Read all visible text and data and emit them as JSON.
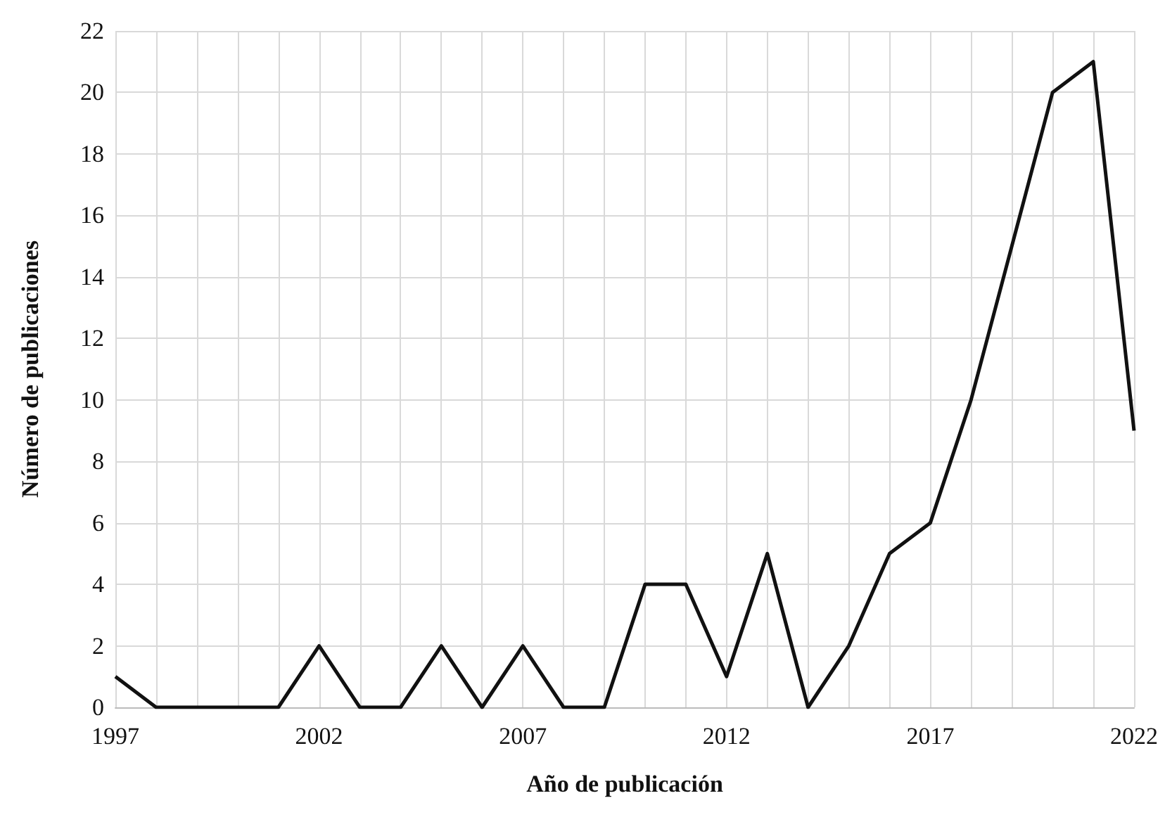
{
  "chart_data": {
    "type": "line",
    "xlabel": "Año de publicación",
    "ylabel": "Número de publicaciones",
    "x": [
      1997,
      1998,
      1999,
      2000,
      2001,
      2002,
      2003,
      2004,
      2005,
      2006,
      2007,
      2008,
      2009,
      2010,
      2011,
      2012,
      2013,
      2014,
      2015,
      2016,
      2017,
      2018,
      2019,
      2020,
      2021,
      2022
    ],
    "series": [
      {
        "color": "#111111",
        "values": [
          1,
          0,
          0,
          0,
          0,
          2,
          0,
          0,
          2,
          0,
          2,
          0,
          0,
          4,
          4,
          1,
          5,
          0,
          2,
          5,
          6,
          10,
          15,
          20,
          21,
          9
        ]
      }
    ],
    "xlim": [
      1997,
      2022
    ],
    "xticks": [
      1997,
      {
        "value": 1998,
        "label": null
      },
      {
        "value": 1999,
        "label": null
      },
      {
        "value": 2000,
        "label": null
      },
      {
        "value": 2001,
        "label": null
      },
      2002,
      {
        "value": 2003,
        "label": null
      },
      {
        "value": 2004,
        "label": null
      },
      {
        "value": 2005,
        "label": null
      },
      {
        "value": 2006,
        "label": null
      },
      2007,
      {
        "value": 2008,
        "label": null
      },
      {
        "value": 2009,
        "label": null
      },
      {
        "value": 2010,
        "label": null
      },
      {
        "value": 2011,
        "label": null
      },
      2012,
      {
        "value": 2013,
        "label": null
      },
      {
        "value": 2014,
        "label": null
      },
      {
        "value": 2015,
        "label": null
      },
      {
        "value": 2016,
        "label": null
      },
      2017,
      {
        "value": 2018,
        "label": null
      },
      {
        "value": 2019,
        "label": null
      },
      {
        "value": 2020,
        "label": null
      },
      {
        "value": 2021,
        "label": null
      },
      2022
    ],
    "ylim": [
      0,
      22
    ],
    "yticks": [
      0,
      2,
      4,
      6,
      8,
      10,
      12,
      14,
      16,
      18,
      20,
      22
    ],
    "grid": true,
    "marker": "none",
    "line_style": "solid"
  }
}
